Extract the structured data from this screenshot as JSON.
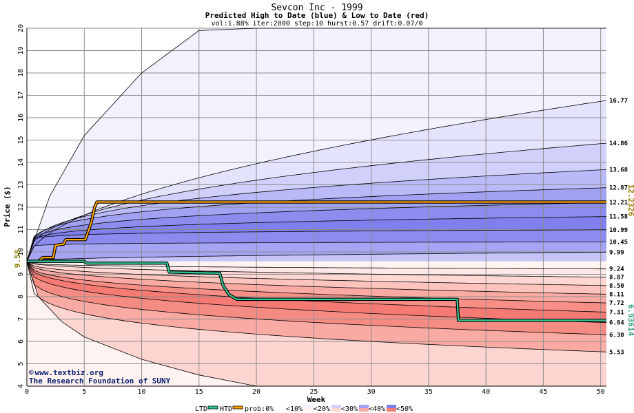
{
  "chart_data": {
    "type": "area",
    "title": "Sevcon Inc - 1999",
    "subtitle": "Predicted High to Date (blue) &  Low to Date (red)",
    "params": "vol:1.88% iter:2000 step:10 hurst:0.57 drift:0.07/0",
    "xlabel": "Week",
    "ylabel": "Price ($)",
    "xlim": [
      0,
      50.5
    ],
    "ylim": [
      4,
      20
    ],
    "x_ticks": [
      0,
      5,
      10,
      15,
      20,
      25,
      30,
      35,
      40,
      45,
      50
    ],
    "y_ticks": [
      4,
      5,
      6,
      7,
      8,
      9,
      10,
      11,
      12,
      13,
      14,
      15,
      16,
      17,
      18,
      19,
      20
    ],
    "grid": true,
    "start_price": 9.58,
    "start_label": "9.58",
    "high_quantiles": [
      {
        "label": "16.77",
        "end": 16.77,
        "mid": 14.5
      },
      {
        "label": "14.86",
        "end": 14.86,
        "mid": 13.55
      },
      {
        "label": "13.68",
        "end": 13.68,
        "mid": 12.88
      },
      {
        "label": "12.87",
        "end": 12.87,
        "mid": 12.35
      },
      {
        "label": "12.21",
        "end": 12.21,
        "mid": 11.85
      },
      {
        "label": "11.58",
        "end": 11.58,
        "mid": 11.37
      },
      {
        "label": "10.99",
        "end": 10.99,
        "mid": 10.92
      },
      {
        "label": "10.45",
        "end": 10.45,
        "mid": 10.42
      },
      {
        "label": "9.99",
        "end": 9.99,
        "mid": 9.99
      }
    ],
    "high_outer_path": {
      "x": [
        0,
        2,
        5,
        10,
        15,
        20,
        30,
        40,
        50.5
      ],
      "y": [
        9.58,
        12.5,
        15.2,
        18.0,
        19.9,
        20,
        20,
        20,
        20
      ]
    },
    "low_quantiles": [
      {
        "label": "9.24",
        "end": 9.24,
        "mid": 9.3
      },
      {
        "label": "8.87",
        "end": 8.87,
        "mid": 9.05
      },
      {
        "label": "8.50",
        "end": 8.5,
        "mid": 8.75
      },
      {
        "label": "8.11",
        "end": 8.11,
        "mid": 8.45
      },
      {
        "label": "7.72",
        "end": 7.72,
        "mid": 8.12
      },
      {
        "label": "7.31",
        "end": 7.31,
        "mid": 7.8
      },
      {
        "label": "6.84",
        "end": 6.84,
        "mid": 7.38
      },
      {
        "label": "6.30",
        "end": 6.3,
        "mid": 6.85
      },
      {
        "label": "5.53",
        "end": 5.53,
        "mid": 6.15
      }
    ],
    "low_outer_path": {
      "x": [
        0,
        1,
        3,
        5,
        10,
        15,
        20,
        30,
        40,
        50.5
      ],
      "y": [
        9.58,
        8.0,
        6.9,
        6.2,
        5.2,
        4.5,
        4.0,
        4,
        4,
        4
      ]
    },
    "htd": {
      "label": "12.2326",
      "color": "#ffa500",
      "x": [
        0,
        1,
        1.4,
        2.3,
        2.5,
        3.2,
        3.4,
        5.1,
        5.6,
        5.9,
        6.1,
        50.5
      ],
      "y": [
        9.58,
        9.58,
        9.75,
        9.75,
        10.3,
        10.35,
        10.55,
        10.55,
        11.3,
        12.0,
        12.23,
        12.23
      ]
    },
    "ltd": {
      "label": "6.93614",
      "color": "#33cc99",
      "x": [
        0,
        5,
        5.2,
        12.2,
        12.4,
        16.8,
        17.1,
        17.6,
        18.3,
        37.5,
        37.6,
        50.5
      ],
      "y": [
        9.58,
        9.58,
        9.5,
        9.5,
        9.1,
        9.05,
        8.5,
        8.1,
        7.88,
        7.88,
        6.94,
        6.94
      ]
    },
    "legend": {
      "ltd": "LTD",
      "htd": "HTD",
      "prob_prefix": "prob:0%",
      "bins": [
        "<10%",
        "<20%",
        "<30%",
        "<40%",
        "<50%"
      ]
    },
    "colors": {
      "blue_bands": [
        "#f2f2fe",
        "#e3e3fc",
        "#d0d0fa",
        "#babaf8",
        "#a2a2f3",
        "#8d8def",
        "#7f7fed",
        "#8c8cef",
        "#a5a5f3",
        "#c4c4f8"
      ],
      "red_bands": [
        "#fff3f1",
        "#ffe9e6",
        "#ffd7d3",
        "#fdc4bd",
        "#faaaa2",
        "#f78f87",
        "#f47a73",
        "#f58c84",
        "#f8aaa3",
        "#fcd5d1",
        "#fff3f1"
      ]
    }
  },
  "credit": {
    "symbol": "©",
    "site": "www.textbiz.org",
    "org": "The Research Foundation of SUNY"
  }
}
